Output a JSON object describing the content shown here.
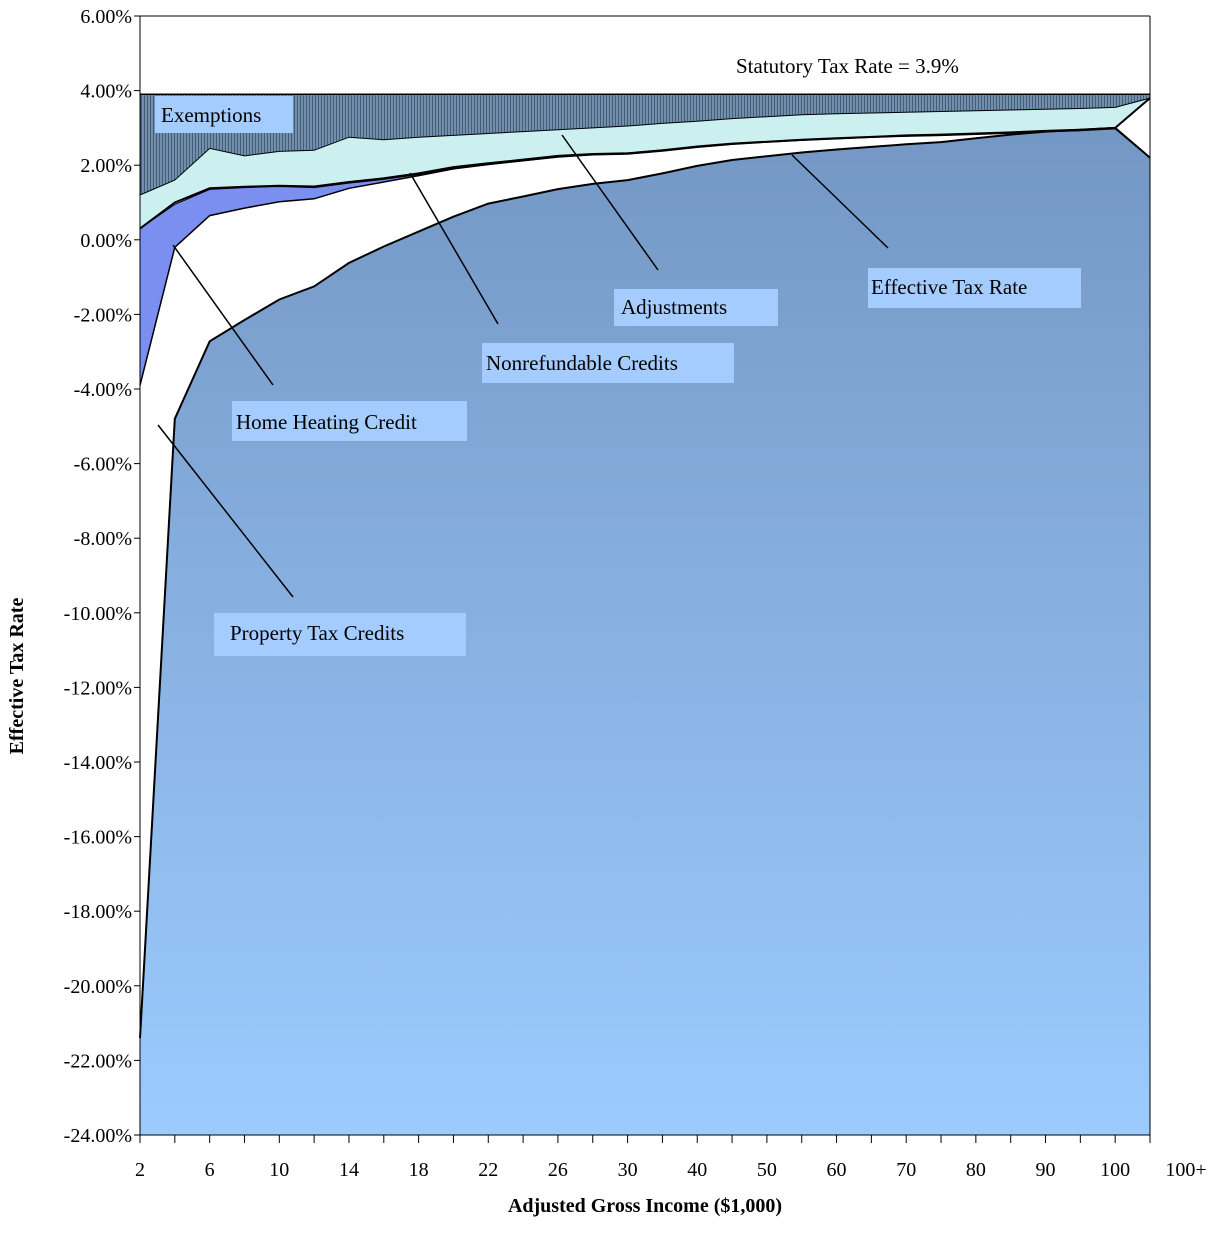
{
  "chart_data": {
    "type": "area",
    "title": "",
    "xlabel": "Adjusted Gross Income ($1,000)",
    "ylabel": "Effective Tax Rate",
    "ylim": [
      -24,
      6
    ],
    "y_tick_step": 2,
    "y_tick_labels": [
      "6.00%",
      "4.00%",
      "2.00%",
      "0.00%",
      "-2.00%",
      "-4.00%",
      "-6.00%",
      "-8.00%",
      "-10.00%",
      "-12.00%",
      "-14.00%",
      "-16.00%",
      "-18.00%",
      "-20.00%",
      "-22.00%",
      "-24.00%"
    ],
    "categories": [
      "2",
      "4",
      "6",
      "8",
      "10",
      "12",
      "14",
      "16",
      "18",
      "20",
      "22",
      "24",
      "26",
      "28",
      "30",
      "35",
      "40",
      "45",
      "50",
      "55",
      "60",
      "65",
      "70",
      "75",
      "80",
      "85",
      "90",
      "95",
      "100",
      "100+"
    ],
    "x_tick_labels": [
      "2",
      "6",
      "10",
      "14",
      "18",
      "22",
      "26",
      "30",
      "40",
      "50",
      "60",
      "70",
      "80",
      "90",
      "100",
      "100+"
    ],
    "statutory_rate": 3.9,
    "colors": {
      "statutory_band": "#ffffff",
      "exemptions": "#3e5f80",
      "adjustments": "#ccf0f0",
      "nonrefundable_credits": "#ffffff",
      "home_heating_credit": "#7a8ff0",
      "property_tax_credits": "#ffffff",
      "effective_rate_top": "#7497c4",
      "effective_rate_bottom": "#9ccbff",
      "label_box": "#a4ccff"
    },
    "series": [
      {
        "name": "Exemptions",
        "values": [
          1.2,
          1.6,
          2.45,
          2.25,
          2.37,
          2.4,
          2.75,
          2.68,
          2.75,
          2.8,
          2.85,
          2.9,
          2.95,
          3.0,
          3.05,
          3.12,
          3.18,
          3.25,
          3.3,
          3.35,
          3.38,
          3.4,
          3.42,
          3.44,
          3.46,
          3.48,
          3.5,
          3.52,
          3.55,
          3.8
        ]
      },
      {
        "name": "Adjustments",
        "values": [
          0.3,
          1.0,
          1.38,
          1.42,
          1.45,
          1.43,
          1.55,
          1.65,
          1.78,
          1.95,
          2.05,
          2.15,
          2.25,
          2.3,
          2.32,
          2.4,
          2.5,
          2.58,
          2.63,
          2.68,
          2.72,
          2.76,
          2.8,
          2.82,
          2.85,
          2.88,
          2.92,
          2.95,
          3.0,
          3.8
        ]
      },
      {
        "name": "Nonrefundable Credits",
        "values": [
          0.3,
          0.95,
          1.35,
          1.4,
          1.43,
          1.4,
          1.52,
          1.62,
          1.75,
          1.92,
          2.02,
          2.12,
          2.22,
          2.28,
          2.3,
          2.38,
          2.48,
          2.56,
          2.62,
          2.67,
          2.71,
          2.75,
          2.78,
          2.8,
          2.83,
          2.86,
          2.9,
          2.93,
          2.98,
          2.2
        ]
      },
      {
        "name": "Home Heating Credit",
        "values": [
          -3.9,
          -0.2,
          0.65,
          0.85,
          1.02,
          1.1,
          1.38,
          1.55,
          1.72,
          1.9,
          2.02,
          2.12,
          2.22,
          2.28,
          2.3,
          2.38,
          2.48,
          2.56,
          2.62,
          2.67,
          2.71,
          2.75,
          2.78,
          2.8,
          2.83,
          2.86,
          2.9,
          2.93,
          2.98,
          2.2
        ]
      },
      {
        "name": "Property Tax Credits",
        "values": [
          -3.9,
          -0.2,
          0.65,
          0.85,
          1.02,
          1.1,
          1.38,
          1.55,
          1.72,
          1.9,
          2.02,
          2.12,
          2.22,
          2.28,
          2.3,
          2.38,
          2.48,
          2.56,
          2.62,
          2.67,
          2.71,
          2.75,
          2.78,
          2.8,
          2.83,
          2.86,
          2.9,
          2.93,
          2.98,
          2.2
        ]
      },
      {
        "name": "Effective Tax Rate",
        "values": [
          -21.4,
          -4.8,
          -2.72,
          -2.15,
          -1.6,
          -1.25,
          -0.62,
          -0.18,
          0.22,
          0.62,
          0.97,
          1.16,
          1.36,
          1.5,
          1.6,
          1.78,
          1.98,
          2.14,
          2.24,
          2.34,
          2.42,
          2.49,
          2.56,
          2.62,
          2.72,
          2.82,
          2.9,
          2.95,
          3.0,
          2.2
        ]
      }
    ],
    "annotations": {
      "statutory": "Statutory Tax Rate = 3.9%",
      "exemptions": "Exemptions",
      "adjustments": "Adjustments",
      "effective_tax_rate": "Effective Tax Rate",
      "nonrefundable_credits": "Nonrefundable Credits",
      "home_heating_credit": "Home Heating Credit",
      "property_tax_credits": "Property Tax Credits"
    },
    "grid": false,
    "legend": "none"
  }
}
